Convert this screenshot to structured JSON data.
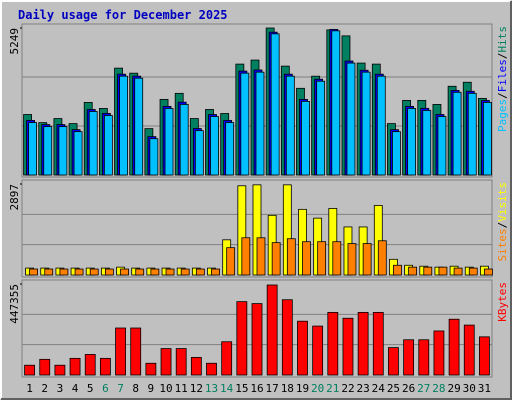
{
  "title": "Daily usage for December 2025",
  "legend_separator": "/",
  "chart_data": [
    {
      "type": "bar",
      "ylim": [
        0,
        5249
      ],
      "yticks": [
        5249
      ],
      "series": [
        {
          "name": "Hits",
          "color": "#008060",
          "values": [
            2160,
            1870,
            2016,
            1836,
            2592,
            2376,
            3816,
            3636,
            1656,
            2700,
            2916,
            2016,
            2340,
            2196,
            3960,
            4104,
            5249,
            3888,
            3096,
            3528,
            5180,
            4968,
            3996,
            3960,
            1836,
            2664,
            2664,
            2520,
            3168,
            3312,
            2736
          ]
        },
        {
          "name": "Files",
          "color": "#0000ff",
          "values": [
            1950,
            1800,
            1800,
            1620,
            2340,
            2200,
            3600,
            3530,
            1370,
            2450,
            2600,
            1660,
            2160,
            1950,
            3710,
            3750,
            5100,
            3600,
            2700,
            3420,
            5200,
            4070,
            3740,
            3600,
            1620,
            2450,
            2380,
            2160,
            3020,
            2990,
            2660
          ]
        },
        {
          "name": "Pages",
          "color": "#00c0ff",
          "values": [
            1872,
            1728,
            1728,
            1548,
            2268,
            2124,
            3528,
            3456,
            1296,
            2376,
            2520,
            1584,
            2088,
            1872,
            3636,
            3672,
            5040,
            3528,
            2628,
            3348,
            5148,
            3996,
            3672,
            3528,
            1548,
            2376,
            2304,
            2088,
            2952,
            2916,
            2592
          ]
        }
      ]
    },
    {
      "type": "bar",
      "ylim": [
        0,
        2897
      ],
      "yticks": [
        2897
      ],
      "series": [
        {
          "name": "Visits",
          "color": "#ffff00",
          "values": [
            220,
            220,
            220,
            220,
            220,
            220,
            250,
            220,
            220,
            220,
            220,
            220,
            220,
            1120,
            2840,
            2870,
            1900,
            2870,
            2090,
            1810,
            2120,
            1530,
            1530,
            2215,
            500,
            310,
            280,
            250,
            280,
            250,
            280
          ]
        },
        {
          "name": "Sites",
          "color": "#ff8000",
          "values": [
            190,
            190,
            190,
            190,
            190,
            190,
            190,
            190,
            190,
            190,
            190,
            190,
            190,
            870,
            1185,
            1185,
            1030,
            1155,
            1060,
            1060,
            1060,
            1000,
            1000,
            1090,
            310,
            250,
            250,
            250,
            220,
            220,
            190
          ]
        }
      ]
    },
    {
      "type": "bar",
      "ylim": [
        0,
        447355
      ],
      "yticks": [
        447355
      ],
      "categories": [
        "1",
        "2",
        "3",
        "4",
        "5",
        "6",
        "7",
        "8",
        "9",
        "10",
        "11",
        "12",
        "13",
        "14",
        "15",
        "16",
        "17",
        "18",
        "19",
        "20",
        "21",
        "22",
        "23",
        "24",
        "25",
        "26",
        "27",
        "28",
        "29",
        "30",
        "31"
      ],
      "category_colors": [
        "#000000",
        "#000000",
        "#000000",
        "#000000",
        "#000000",
        "#008060",
        "#008060",
        "#000000",
        "#000000",
        "#000000",
        "#000000",
        "#000000",
        "#008060",
        "#008060",
        "#000000",
        "#000000",
        "#000000",
        "#000000",
        "#000000",
        "#008060",
        "#008060",
        "#000000",
        "#000000",
        "#000000",
        "#000000",
        "#000000",
        "#008060",
        "#008060",
        "#000000",
        "#000000",
        "#000000"
      ],
      "series": [
        {
          "name": "KBytes",
          "color": "#ff0000",
          "values": [
            48100,
            77000,
            48100,
            81800,
            101000,
            81800,
            231000,
            231000,
            57700,
            130000,
            130000,
            86600,
            57700,
            163500,
            360700,
            351100,
            442500,
            370000,
            264500,
            240500,
            307800,
            279000,
            307800,
            307800,
            134700,
            173200,
            173200,
            216500,
            274200,
            245300,
            187600
          ]
        }
      ]
    }
  ]
}
